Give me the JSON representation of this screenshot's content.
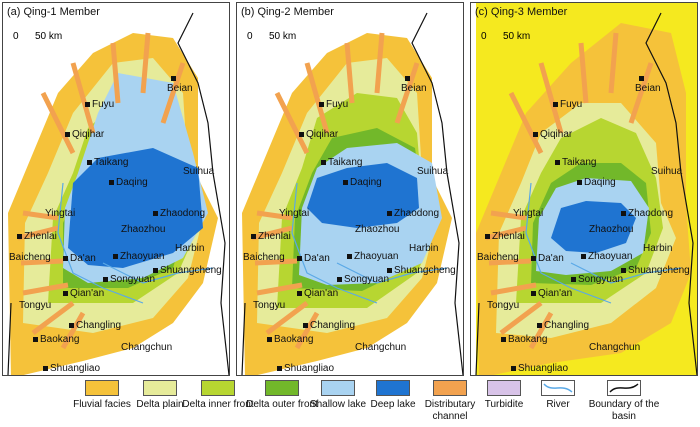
{
  "panels": [
    {
      "title": "(a) Qing-1 Member",
      "scale_zero": "0",
      "scale_text": "50 km"
    },
    {
      "title": "(b) Qing-2 Member",
      "scale_zero": "0",
      "scale_text": "50 km"
    },
    {
      "title": "(c) Qing-3 Member",
      "scale_zero": "0",
      "scale_text": "50 km"
    }
  ],
  "cities": [
    "Beian",
    "Fuyu",
    "Qiqihar",
    "Taikang",
    "Suihua",
    "Daqing",
    "Yingtai",
    "Zhaodong",
    "Zhenlai",
    "Zhaozhou",
    "Baicheng",
    "Da'an",
    "Harbin",
    "Zhaoyuan",
    "Shuangcheng",
    "Songyuan",
    "Qian'an",
    "Tongyu",
    "Changling",
    "Baokang",
    "Changchun",
    "Shuangliao"
  ],
  "legend": [
    {
      "label": "Fluvial facies",
      "color": "#f5c23a",
      "icon": "fill"
    },
    {
      "label": "Delta plain",
      "color": "#e6eb9a",
      "icon": "fill"
    },
    {
      "label": "Delta inner front",
      "color": "#b7d631",
      "icon": "fill"
    },
    {
      "label": "Delta outer front",
      "color": "#72b82a",
      "icon": "fill"
    },
    {
      "label": "Shallow lake",
      "color": "#a9d3f1",
      "icon": "fill"
    },
    {
      "label": "Deep lake",
      "color": "#1f74d1",
      "icon": "fill"
    },
    {
      "label": "Distributary channel",
      "color": "#f2a24f",
      "icon": "fill"
    },
    {
      "label": "Turbidite",
      "color": "#d8c3e8",
      "icon": "fill"
    },
    {
      "label": "River",
      "color": "#5aa9e6",
      "icon": "river-line"
    },
    {
      "label": "Boundary of the basin",
      "color": "#111111",
      "icon": "boundary-line"
    }
  ]
}
